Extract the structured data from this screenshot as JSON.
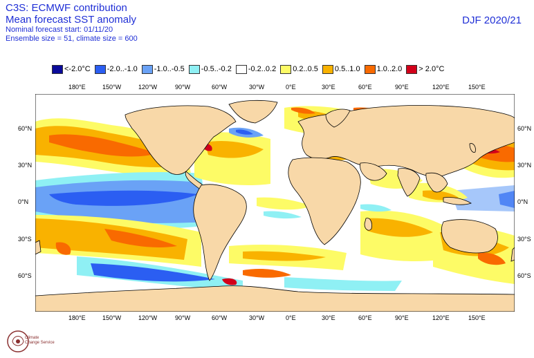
{
  "header": {
    "source": "C3S: ECMWF contribution",
    "product": "Mean forecast SST anomaly",
    "forecast_start": "Nominal forecast start: 01/11/20",
    "ensemble": "Ensemble size = 51, climate size = 600",
    "season": "DJF 2020/21"
  },
  "legend": [
    {
      "label": "<-2.0°C",
      "color": "#0a0a9a"
    },
    {
      "label": "-2.0..-1.0",
      "color": "#2b5ef2"
    },
    {
      "label": "-1.0..-0.5",
      "color": "#6aa2f6"
    },
    {
      "label": "-0.5..-0.2",
      "color": "#8ff0f4"
    },
    {
      "label": "-0.2..0.2",
      "color": "#ffffff"
    },
    {
      "label": "0.2..0.5",
      "color": "#fdfb66"
    },
    {
      "label": "0.5..1.0",
      "color": "#f9b200"
    },
    {
      "label": "1.0..2.0",
      "color": "#f96a00"
    },
    {
      "label": "> 2.0°C",
      "color": "#d2001a"
    }
  ],
  "axes": {
    "lon_ticks": [
      "180°E",
      "150°W",
      "120°W",
      "90°W",
      "60°W",
      "30°W",
      "0°E",
      "30°E",
      "60°E",
      "90°E",
      "120°E",
      "150°E"
    ],
    "lat_ticks": [
      "60°N",
      "30°N",
      "0°N",
      "30°S",
      "60°S"
    ]
  },
  "colors": {
    "land": "#f8d8a8",
    "ocean_neutral": "#ffffff",
    "coastline": "#000000",
    "border": "#7a7a7a"
  },
  "logo": {
    "name": "copernicus-climate-change-logo",
    "text_line1": "Climate",
    "text_line2": "Change Service"
  }
}
